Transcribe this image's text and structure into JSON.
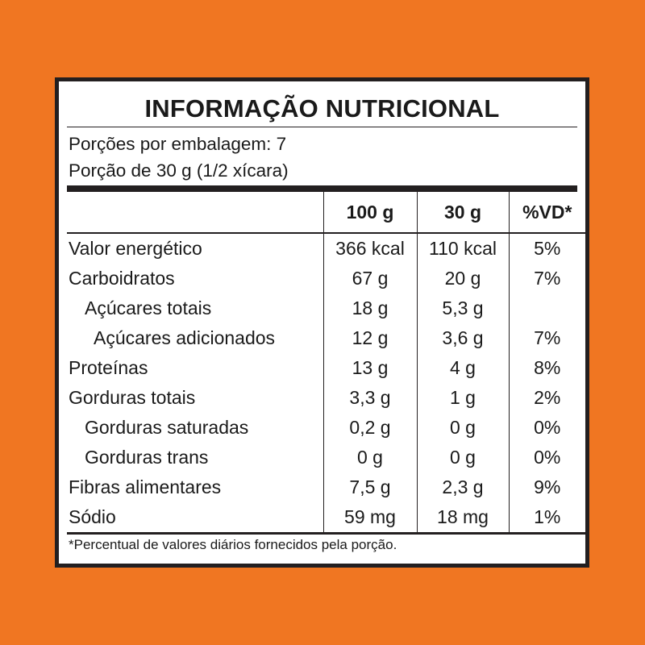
{
  "label": {
    "title": "INFORMAÇÃO NUTRICIONAL",
    "servings_per_package": "Porções por embalagem: 7",
    "serving_size": "Porção de 30 g (1/2 xícara)",
    "columns": [
      "",
      "100 g",
      "30 g",
      "%VD*"
    ],
    "rows": [
      {
        "name": "Valor energético",
        "indent": 0,
        "per100": "366 kcal",
        "per30": "110 kcal",
        "vd": "5%"
      },
      {
        "name": "Carboidratos",
        "indent": 0,
        "per100": "67 g",
        "per30": "20 g",
        "vd": "7%"
      },
      {
        "name": "Açúcares totais",
        "indent": 1,
        "per100": "18 g",
        "per30": "5,3 g",
        "vd": ""
      },
      {
        "name": "Açúcares adicionados",
        "indent": 2,
        "per100": "12 g",
        "per30": "3,6 g",
        "vd": "7%"
      },
      {
        "name": "Proteínas",
        "indent": 0,
        "per100": "13 g",
        "per30": "4 g",
        "vd": "8%"
      },
      {
        "name": "Gorduras totais",
        "indent": 0,
        "per100": "3,3 g",
        "per30": "1 g",
        "vd": "2%"
      },
      {
        "name": "Gorduras saturadas",
        "indent": 1,
        "per100": "0,2 g",
        "per30": "0 g",
        "vd": "0%"
      },
      {
        "name": "Gorduras trans",
        "indent": 1,
        "per100": "0 g",
        "per30": "0 g",
        "vd": "0%"
      },
      {
        "name": "Fibras alimentares",
        "indent": 0,
        "per100": "7,5 g",
        "per30": "2,3 g",
        "vd": "9%"
      },
      {
        "name": "Sódio",
        "indent": 0,
        "per100": "59 mg",
        "per30": "18 mg",
        "vd": "1%"
      }
    ],
    "footnote": "*Percentual de valores diários fornecidos pela porção."
  },
  "colors": {
    "background": "#F07622",
    "panel": "#FFFFFF",
    "ink": "#231F20"
  }
}
